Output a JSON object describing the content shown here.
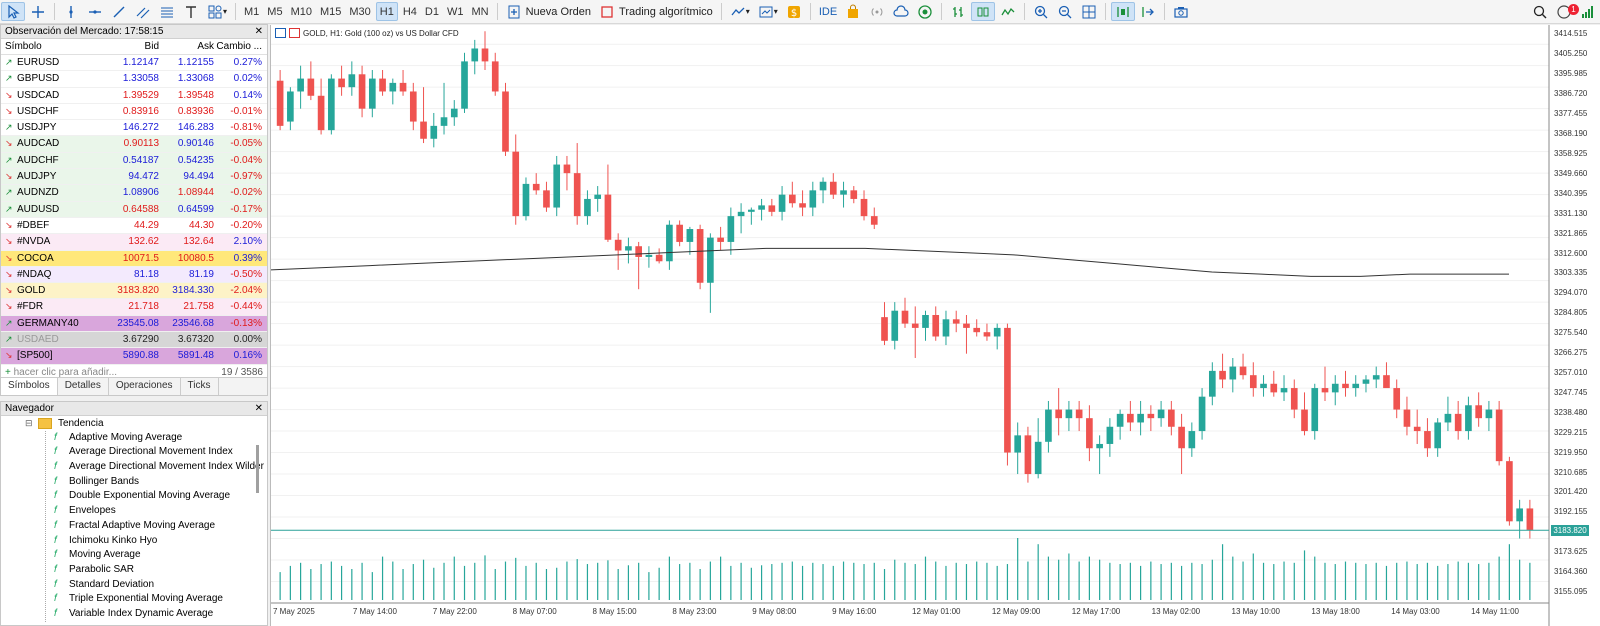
{
  "toolbar": {
    "timeframes": [
      "M1",
      "M5",
      "M10",
      "M15",
      "M30",
      "H1",
      "H4",
      "D1",
      "W1",
      "MN"
    ],
    "active_timeframe": "H1",
    "new_order": "Nueva Orden",
    "algo_trading": "Trading algorítmico",
    "ide": "IDE",
    "notifications_count": "1"
  },
  "market_watch": {
    "title": "Observación del Mercado: 17:58:15",
    "columns": [
      "Símbolo",
      "Bid",
      "Ask",
      "Cambio ..."
    ],
    "rows": [
      {
        "symbol": "EURUSD",
        "dir": "up",
        "bid": "1.12147",
        "ask": "1.12155",
        "change": "0.27%",
        "bidc": "blue",
        "askc": "blue",
        "chgc": "blue",
        "bg": "#ffffff"
      },
      {
        "symbol": "GBPUSD",
        "dir": "up",
        "bid": "1.33058",
        "ask": "1.33068",
        "change": "0.02%",
        "bidc": "blue",
        "askc": "blue",
        "chgc": "blue",
        "bg": "#ffffff"
      },
      {
        "symbol": "USDCAD",
        "dir": "dn",
        "bid": "1.39529",
        "ask": "1.39548",
        "change": "0.14%",
        "bidc": "red",
        "askc": "red",
        "chgc": "blue",
        "bg": "#ffffff"
      },
      {
        "symbol": "USDCHF",
        "dir": "dn",
        "bid": "0.83916",
        "ask": "0.83936",
        "change": "-0.01%",
        "bidc": "red",
        "askc": "red",
        "chgc": "red",
        "bg": "#ffffff"
      },
      {
        "symbol": "USDJPY",
        "dir": "up",
        "bid": "146.272",
        "ask": "146.283",
        "change": "-0.81%",
        "bidc": "blue",
        "askc": "blue",
        "chgc": "red",
        "bg": "#ffffff"
      },
      {
        "symbol": "AUDCAD",
        "dir": "dn",
        "bid": "0.90113",
        "ask": "0.90146",
        "change": "-0.05%",
        "bidc": "red",
        "askc": "blue",
        "chgc": "red",
        "bg": "#eaf6ea"
      },
      {
        "symbol": "AUDCHF",
        "dir": "up",
        "bid": "0.54187",
        "ask": "0.54235",
        "change": "-0.04%",
        "bidc": "blue",
        "askc": "blue",
        "chgc": "red",
        "bg": "#eaf6ea"
      },
      {
        "symbol": "AUDJPY",
        "dir": "dn",
        "bid": "94.472",
        "ask": "94.494",
        "change": "-0.97%",
        "bidc": "blue",
        "askc": "blue",
        "chgc": "red",
        "bg": "#eaf6ea"
      },
      {
        "symbol": "AUDNZD",
        "dir": "up",
        "bid": "1.08906",
        "ask": "1.08944",
        "change": "-0.02%",
        "bidc": "blue",
        "askc": "red",
        "chgc": "red",
        "bg": "#eaf6ea"
      },
      {
        "symbol": "AUDUSD",
        "dir": "up",
        "bid": "0.64588",
        "ask": "0.64599",
        "change": "-0.17%",
        "bidc": "red",
        "askc": "blue",
        "chgc": "red",
        "bg": "#eaf6ea"
      },
      {
        "symbol": "#DBEF",
        "dir": "dn",
        "bid": "44.29",
        "ask": "44.30",
        "change": "-0.20%",
        "bidc": "red",
        "askc": "red",
        "chgc": "red",
        "bg": "#ffffff"
      },
      {
        "symbol": "#NVDA",
        "dir": "dn",
        "bid": "132.62",
        "ask": "132.64",
        "change": "2.10%",
        "bidc": "red",
        "askc": "red",
        "chgc": "blue",
        "bg": "#fbeaf5"
      },
      {
        "symbol": "COCOA",
        "dir": "dn",
        "bid": "10071.5",
        "ask": "10080.5",
        "change": "0.39%",
        "bidc": "red",
        "askc": "red",
        "chgc": "blue",
        "bg": "#ffe87a"
      },
      {
        "symbol": "#NDAQ",
        "dir": "dn",
        "bid": "81.18",
        "ask": "81.19",
        "change": "-0.50%",
        "bidc": "blue",
        "askc": "blue",
        "chgc": "red",
        "bg": "#f3eafd"
      },
      {
        "symbol": "GOLD",
        "dir": "dn",
        "bid": "3183.820",
        "ask": "3184.330",
        "change": "-2.04%",
        "bidc": "red",
        "askc": "blue",
        "chgc": "red",
        "bg": "#fdf3c7"
      },
      {
        "symbol": "#FDR",
        "dir": "dn",
        "bid": "21.718",
        "ask": "21.758",
        "change": "-0.44%",
        "bidc": "red",
        "askc": "red",
        "chgc": "red",
        "bg": "#fbeaf5"
      },
      {
        "symbol": "GERMANY40",
        "dir": "up",
        "bid": "23545.08",
        "ask": "23546.68",
        "change": "-0.13%",
        "bidc": "blue",
        "askc": "blue",
        "chgc": "red",
        "bg": "#d9a6dc"
      },
      {
        "symbol": "USDAED",
        "dir": "up",
        "bid": "3.67290",
        "ask": "3.67320",
        "change": "0.00%",
        "bidc": "dark",
        "askc": "dark",
        "chgc": "dark",
        "bg": "#d6d6d6",
        "faded": true
      },
      {
        "symbol": "[SP500]",
        "dir": "dn",
        "bid": "5890.88",
        "ask": "5891.48",
        "change": "0.16%",
        "bidc": "blue",
        "askc": "blue",
        "chgc": "blue",
        "bg": "#d9a6dc"
      }
    ],
    "add_hint": "hacer clic para añadir...",
    "count": "19 / 3586",
    "tabs": [
      "Símbolos",
      "Detalles",
      "Operaciones",
      "Ticks"
    ]
  },
  "navigator": {
    "title": "Navegador",
    "folder": "Tendencia",
    "items": [
      "Adaptive Moving Average",
      "Average Directional Movement Index",
      "Average Directional Movement Index Wilder",
      "Bollinger Bands",
      "Double Exponential Moving Average",
      "Envelopes",
      "Fractal Adaptive Moving Average",
      "Ichimoku Kinko Hyo",
      "Moving Average",
      "Parabolic SAR",
      "Standard Deviation",
      "Triple Exponential Moving Average",
      "Variable Index Dynamic Average"
    ]
  },
  "chart": {
    "title": "GOLD, H1:  Gold (100 oz) vs US Dollar CFD",
    "current_price": "3183.820",
    "bull_color": "#26a69a",
    "bear_color": "#ef5350",
    "y_labels": [
      "3414.515",
      "3405.250",
      "3395.985",
      "3386.720",
      "3377.455",
      "3368.190",
      "3358.925",
      "3349.660",
      "3340.395",
      "3331.130",
      "3321.865",
      "3312.600",
      "3303.335",
      "3294.070",
      "3284.805",
      "3275.540",
      "3266.275",
      "3257.010",
      "3247.745",
      "3238.480",
      "3229.215",
      "3219.950",
      "3210.685",
      "3201.420",
      "3192.155",
      "3173.625",
      "3164.360",
      "3155.095"
    ],
    "x_labels": [
      "7 May 2025",
      "7 May 14:00",
      "7 May 22:00",
      "8 May 07:00",
      "8 May 15:00",
      "8 May 23:00",
      "9 May 08:00",
      "9 May 16:00",
      "12 May 01:00",
      "12 May 09:00",
      "12 May 17:00",
      "13 May 02:00",
      "13 May 10:00",
      "13 May 18:00",
      "14 May 03:00",
      "14 May 11:00"
    ]
  },
  "chart_data": {
    "type": "candlestick",
    "y_axis": {
      "min": 3150,
      "max": 3418
    },
    "ohlc": [
      [
        3393,
        3398,
        3370,
        3372
      ],
      [
        3374,
        3390,
        3370,
        3388
      ],
      [
        3388,
        3400,
        3380,
        3394
      ],
      [
        3394,
        3402,
        3384,
        3386
      ],
      [
        3386,
        3394,
        3368,
        3370
      ],
      [
        3370,
        3396,
        3368,
        3394
      ],
      [
        3394,
        3400,
        3386,
        3390
      ],
      [
        3390,
        3402,
        3386,
        3396
      ],
      [
        3396,
        3400,
        3376,
        3380
      ],
      [
        3380,
        3398,
        3376,
        3394
      ],
      [
        3394,
        3398,
        3386,
        3388
      ],
      [
        3388,
        3394,
        3382,
        3392
      ],
      [
        3392,
        3398,
        3386,
        3388
      ],
      [
        3388,
        3392,
        3370,
        3374
      ],
      [
        3374,
        3390,
        3364,
        3366
      ],
      [
        3366,
        3378,
        3362,
        3372
      ],
      [
        3372,
        3392,
        3368,
        3376
      ],
      [
        3376,
        3384,
        3372,
        3380
      ],
      [
        3380,
        3406,
        3378,
        3402
      ],
      [
        3402,
        3412,
        3396,
        3408
      ],
      [
        3408,
        3416,
        3398,
        3402
      ],
      [
        3402,
        3406,
        3386,
        3388
      ],
      [
        3388,
        3392,
        3358,
        3360
      ],
      [
        3360,
        3368,
        3326,
        3330
      ],
      [
        3330,
        3348,
        3328,
        3345
      ],
      [
        3345,
        3350,
        3340,
        3342
      ],
      [
        3342,
        3346,
        3332,
        3334
      ],
      [
        3334,
        3358,
        3330,
        3354
      ],
      [
        3354,
        3358,
        3342,
        3350
      ],
      [
        3350,
        3364,
        3326,
        3330
      ],
      [
        3330,
        3342,
        3326,
        3338
      ],
      [
        3338,
        3344,
        3332,
        3340
      ],
      [
        3340,
        3354,
        3318,
        3319
      ],
      [
        3319,
        3322,
        3305,
        3314
      ],
      [
        3314,
        3320,
        3308,
        3316
      ],
      [
        3316,
        3318,
        3296,
        3311
      ],
      [
        3311,
        3316,
        3306,
        3312
      ],
      [
        3312,
        3315,
        3308,
        3309
      ],
      [
        3309,
        3328,
        3305,
        3326
      ],
      [
        3326,
        3328,
        3316,
        3318
      ],
      [
        3318,
        3325,
        3312,
        3324
      ],
      [
        3324,
        3326,
        3296,
        3299
      ],
      [
        3299,
        3322,
        3285,
        3320
      ],
      [
        3320,
        3325,
        3314,
        3318
      ],
      [
        3318,
        3334,
        3312,
        3330
      ],
      [
        3330,
        3336,
        3322,
        3332
      ],
      [
        3332,
        3334,
        3326,
        3333
      ],
      [
        3333,
        3338,
        3328,
        3335
      ],
      [
        3335,
        3338,
        3330,
        3332
      ],
      [
        3332,
        3344,
        3328,
        3340
      ],
      [
        3340,
        3346,
        3334,
        3336
      ],
      [
        3336,
        3342,
        3330,
        3334
      ],
      [
        3334,
        3346,
        3330,
        3342
      ],
      [
        3342,
        3348,
        3336,
        3346
      ],
      [
        3346,
        3350,
        3338,
        3340
      ],
      [
        3340,
        3346,
        3334,
        3342
      ],
      [
        3342,
        3344,
        3336,
        3338
      ],
      [
        3338,
        3342,
        3328,
        3330
      ],
      [
        3330,
        3334,
        3324,
        3326
      ],
      [
        3283,
        3290,
        3270,
        3272
      ],
      [
        3272,
        3290,
        3268,
        3286
      ],
      [
        3286,
        3292,
        3278,
        3280
      ],
      [
        3280,
        3288,
        3264,
        3278
      ],
      [
        3278,
        3286,
        3272,
        3284
      ],
      [
        3284,
        3288,
        3272,
        3274
      ],
      [
        3274,
        3286,
        3270,
        3282
      ],
      [
        3282,
        3286,
        3276,
        3280
      ],
      [
        3280,
        3284,
        3266,
        3278
      ],
      [
        3278,
        3282,
        3274,
        3276
      ],
      [
        3276,
        3280,
        3272,
        3274
      ],
      [
        3274,
        3280,
        3268,
        3278
      ],
      [
        3278,
        3280,
        3214,
        3220
      ],
      [
        3220,
        3234,
        3210,
        3228
      ],
      [
        3228,
        3232,
        3206,
        3210
      ],
      [
        3210,
        3236,
        3208,
        3225
      ],
      [
        3225,
        3244,
        3220,
        3240
      ],
      [
        3240,
        3250,
        3228,
        3236
      ],
      [
        3236,
        3244,
        3230,
        3240
      ],
      [
        3240,
        3244,
        3230,
        3236
      ],
      [
        3236,
        3242,
        3216,
        3222
      ],
      [
        3222,
        3228,
        3210,
        3224
      ],
      [
        3224,
        3236,
        3218,
        3232
      ],
      [
        3232,
        3240,
        3226,
        3238
      ],
      [
        3238,
        3244,
        3230,
        3234
      ],
      [
        3234,
        3244,
        3228,
        3238
      ],
      [
        3238,
        3242,
        3230,
        3236
      ],
      [
        3236,
        3244,
        3232,
        3240
      ],
      [
        3240,
        3244,
        3228,
        3232
      ],
      [
        3232,
        3238,
        3210,
        3222
      ],
      [
        3222,
        3234,
        3218,
        3230
      ],
      [
        3230,
        3250,
        3226,
        3246
      ],
      [
        3246,
        3262,
        3242,
        3258
      ],
      [
        3258,
        3266,
        3250,
        3254
      ],
      [
        3254,
        3264,
        3248,
        3260
      ],
      [
        3260,
        3266,
        3254,
        3256
      ],
      [
        3256,
        3262,
        3246,
        3250
      ],
      [
        3250,
        3256,
        3246,
        3252
      ],
      [
        3252,
        3258,
        3246,
        3248
      ],
      [
        3248,
        3256,
        3244,
        3250
      ],
      [
        3250,
        3254,
        3236,
        3240
      ],
      [
        3240,
        3248,
        3228,
        3230
      ],
      [
        3230,
        3252,
        3226,
        3250
      ],
      [
        3250,
        3260,
        3244,
        3248
      ],
      [
        3248,
        3256,
        3242,
        3252
      ],
      [
        3252,
        3258,
        3246,
        3250
      ],
      [
        3250,
        3256,
        3246,
        3252
      ],
      [
        3252,
        3256,
        3248,
        3254
      ],
      [
        3254,
        3260,
        3250,
        3256
      ],
      [
        3256,
        3262,
        3252,
        3250
      ],
      [
        3250,
        3254,
        3236,
        3240
      ],
      [
        3240,
        3246,
        3228,
        3232
      ],
      [
        3232,
        3240,
        3224,
        3230
      ],
      [
        3230,
        3236,
        3218,
        3222
      ],
      [
        3222,
        3236,
        3218,
        3234
      ],
      [
        3234,
        3246,
        3230,
        3238
      ],
      [
        3238,
        3244,
        3226,
        3230
      ],
      [
        3230,
        3246,
        3226,
        3242
      ],
      [
        3242,
        3248,
        3232,
        3236
      ],
      [
        3236,
        3244,
        3230,
        3240
      ],
      [
        3240,
        3244,
        3214,
        3216
      ],
      [
        3216,
        3218,
        3186,
        3188
      ],
      [
        3188,
        3198,
        3180,
        3194
      ],
      [
        3194,
        3198,
        3180,
        3184
      ]
    ],
    "ma_line": [
      3305,
      3306,
      3307,
      3308,
      3309,
      3310,
      3311,
      3312,
      3313,
      3314,
      3315,
      3315,
      3315,
      3314,
      3313,
      3312,
      3310,
      3308,
      3306,
      3304,
      3303,
      3302,
      3302,
      3303,
      3303,
      3303
    ],
    "volume": [
      0.45,
      0.55,
      0.6,
      0.5,
      0.58,
      0.62,
      0.55,
      0.5,
      0.6,
      0.45,
      0.7,
      0.62,
      0.5,
      0.58,
      0.65,
      0.52,
      0.6,
      0.7,
      0.55,
      0.6,
      0.72,
      0.5,
      0.62,
      0.68,
      0.55,
      0.6,
      0.5,
      0.52,
      0.62,
      0.66,
      0.58,
      0.6,
      0.64,
      0.5,
      0.56,
      0.6,
      0.45,
      0.52,
      0.7,
      0.58,
      0.6,
      0.5,
      0.62,
      0.7,
      0.55,
      0.6,
      0.52,
      0.56,
      0.58,
      0.6,
      0.62,
      0.55,
      0.6,
      0.58,
      0.55,
      0.62,
      0.6,
      0.58,
      0.6,
      0.5,
      0.65,
      0.6,
      0.58,
      0.7,
      0.62,
      0.55,
      0.6,
      0.58,
      0.62,
      0.6,
      0.55,
      0.58,
      1.0,
      0.62,
      0.9,
      0.7,
      0.65,
      0.75,
      0.62,
      0.7,
      0.65,
      0.6,
      0.58,
      0.6,
      0.55,
      0.62,
      0.58,
      0.6,
      0.55,
      0.6,
      0.58,
      0.65,
      0.9,
      0.7,
      0.62,
      0.75,
      0.6,
      0.58,
      0.62,
      0.6,
      0.8,
      0.7,
      0.6,
      0.58,
      0.62,
      0.6,
      0.58,
      0.6,
      0.55,
      0.6,
      0.62,
      0.58,
      0.6,
      0.55,
      0.58,
      0.62,
      0.6,
      0.58,
      0.6,
      0.7,
      0.9,
      0.65,
      0.6
    ]
  }
}
